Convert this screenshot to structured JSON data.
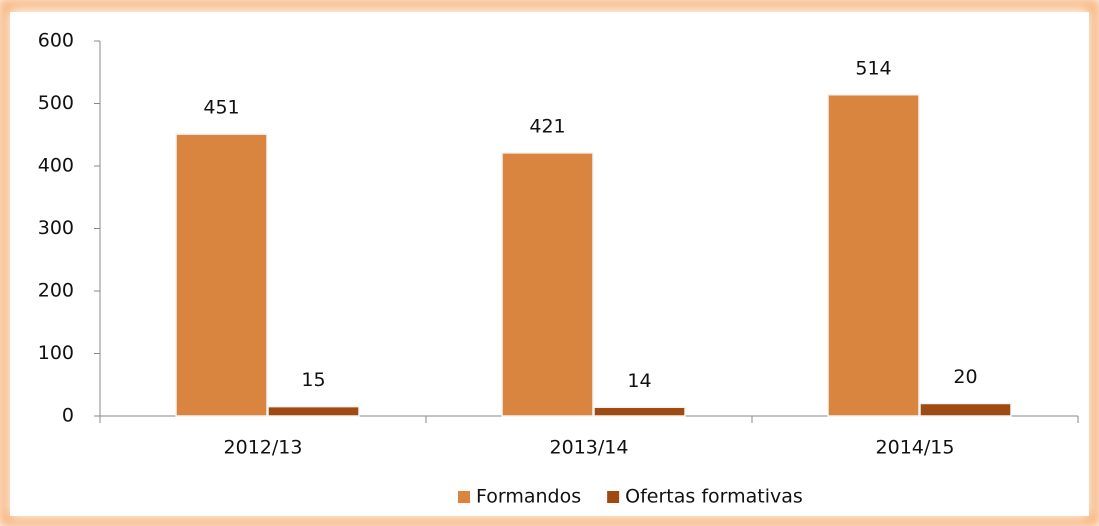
{
  "chart_data": {
    "type": "bar",
    "categories": [
      "2012/13",
      "2013/14",
      "2014/15"
    ],
    "series": [
      {
        "name": "Formandos",
        "color": "#d98540",
        "values": [
          451,
          421,
          514
        ]
      },
      {
        "name": "Ofertas formativas",
        "color": "#9e4a10",
        "values": [
          15,
          14,
          20
        ]
      }
    ],
    "ylim": [
      0,
      600
    ],
    "yticks": [
      0,
      100,
      200,
      300,
      400,
      500,
      600
    ],
    "grid": false,
    "legend": "bottom"
  }
}
